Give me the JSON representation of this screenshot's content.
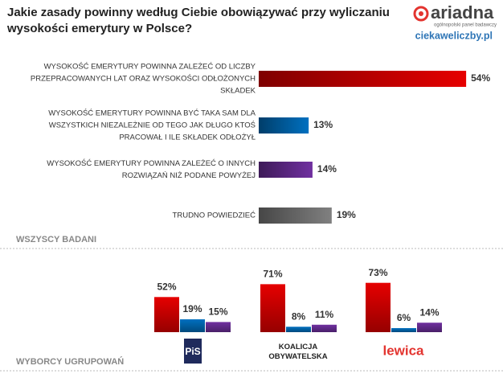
{
  "header": {
    "title": "Jakie zasady powinny według Ciebie obowiązywać przy wyliczaniu wysokości emerytury w Polsce?",
    "brand": "ariadna",
    "brand_tagline": "ogólnopolski panel badawczy",
    "site": "ciekaweliczby.pl"
  },
  "chart_data": [
    {
      "type": "barh",
      "section_label": "WSZYSCY BADANI",
      "categories": [
        [
          "WYSOKOŚĆ EMERYTURY POWINNA  ZALEŻEĆ OD LICZBY",
          "PRZEPRACOWANYCH LAT ORAZ WYSOKOŚCI ODŁOŻONYCH",
          "SKŁADEK"
        ],
        [
          "WYSOKOŚĆ EMERYTURY POWINNA  BYĆ TAKA SAM DLA",
          "WSZYSTKICH NIEZALEŻNIE OD TEGO JAK DŁUGO KTOŚ",
          "PRACOWAŁ I ILE SKŁADEK ODŁOŻYŁ"
        ],
        [
          "WYSOKOŚĆ EMERYTURY POWINNA  ZALEŻEĆ O INNYCH",
          "ROZWIĄZAŃ NIŻ PODANE POWYŻEJ"
        ],
        [
          "TRUDNO POWIEDZIEĆ"
        ]
      ],
      "values": [
        54,
        13,
        14,
        19
      ],
      "value_labels": [
        "54%",
        "13%",
        "14%",
        "19%"
      ],
      "colors": [
        "#e60000",
        "#0070c0",
        "#7030a0",
        "#808080"
      ]
    },
    {
      "type": "grouped_bar",
      "section_label": "WYBORCY UGRUPOWAŃ",
      "categories": [
        "PiS",
        "KOALICJA OBYWATELSKA",
        "lewica"
      ],
      "series": [
        {
          "color": "#e60000",
          "values": [
            52,
            71,
            73
          ],
          "value_labels": [
            "52%",
            "71%",
            "73%"
          ]
        },
        {
          "color": "#0070c0",
          "values": [
            19,
            8,
            6
          ],
          "value_labels": [
            "19%",
            "8%",
            "6%"
          ]
        },
        {
          "color": "#7030a0",
          "values": [
            15,
            11,
            14
          ],
          "value_labels": [
            "15%",
            "11%",
            "14%"
          ]
        }
      ]
    }
  ]
}
